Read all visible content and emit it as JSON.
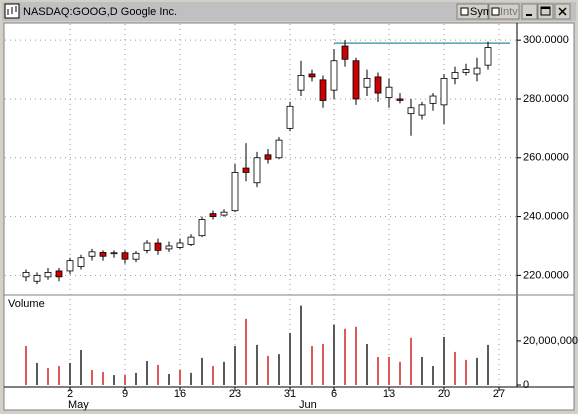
{
  "window": {
    "title": "NASDAQ:GOOG,D Google Inc.",
    "sym": "Sym",
    "intv": "Intv"
  },
  "chart_data": [
    {
      "type": "candlestick",
      "categories": [
        null,
        null,
        null,
        null,
        "2",
        null,
        null,
        null,
        null,
        "9",
        null,
        null,
        null,
        null,
        "16",
        null,
        null,
        null,
        null,
        "23",
        null,
        null,
        null,
        null,
        "31",
        null,
        null,
        null,
        "6",
        null,
        null,
        null,
        null,
        "13",
        null,
        null,
        null,
        null,
        "20",
        null,
        null,
        null,
        null,
        "27"
      ],
      "months": [
        null,
        null,
        null,
        null,
        "May",
        null,
        null,
        null,
        null,
        null,
        null,
        null,
        null,
        null,
        null,
        null,
        null,
        null,
        null,
        null,
        null,
        null,
        null,
        null,
        null,
        "Jun",
        null,
        null,
        null,
        null,
        null,
        null,
        null,
        null,
        null,
        null,
        null,
        null,
        null,
        null,
        null,
        null,
        null,
        null
      ],
      "open": [
        219.5,
        218,
        219.5,
        221.5,
        221.5,
        223,
        226.5,
        227.8,
        227.5,
        227.7,
        225.5,
        228.5,
        231,
        229,
        229.5,
        230.5,
        233.5,
        241,
        240.5,
        242,
        256.5,
        251.5,
        261,
        260,
        270,
        283,
        288.5,
        286.5,
        283,
        298,
        293,
        284,
        287.5,
        280.5,
        280,
        275,
        274.5,
        278.5,
        278,
        287,
        289,
        288.5,
        291.5,
        null
      ],
      "high": [
        222,
        221,
        222.5,
        222.5,
        226,
        227,
        229,
        228.5,
        228.5,
        228.5,
        228.3,
        232,
        232.5,
        231.5,
        232.5,
        234,
        240,
        242,
        242.5,
        258,
        265,
        262,
        263,
        267,
        279,
        293,
        290,
        288,
        297,
        300,
        294,
        290,
        289,
        287,
        282,
        280,
        279,
        282,
        288.5,
        291,
        292,
        294,
        299.5,
        null
      ],
      "low": [
        218,
        217,
        218.5,
        218,
        220.5,
        222,
        225,
        225,
        226,
        224,
        224.5,
        227.5,
        227,
        228,
        229,
        230,
        233,
        239,
        240,
        241.5,
        252,
        250,
        258,
        259.5,
        269,
        281,
        286,
        277,
        280,
        291,
        278,
        281,
        279,
        277,
        278.5,
        267.5,
        273,
        276,
        271.5,
        285,
        288,
        286,
        290,
        null
      ],
      "close": [
        221,
        220,
        221,
        219.5,
        225,
        226,
        228,
        226.5,
        227.7,
        225.5,
        227.5,
        231,
        228.5,
        230,
        231,
        233,
        239,
        240,
        241.5,
        255,
        255,
        260,
        259.5,
        266,
        277.5,
        288,
        287.5,
        279.5,
        293,
        293.5,
        280,
        287,
        282,
        284,
        279.5,
        277,
        278,
        281,
        287,
        289,
        290,
        290.5,
        297.5,
        null
      ],
      "up_color": "#ffffff",
      "down_color": "#cc0000",
      "annotation_line": {
        "value": 299,
        "color": "#2b8c99"
      },
      "ylim": [
        214,
        305.5
      ],
      "yticks": [
        {
          "value": 220,
          "label": "220.0000"
        },
        {
          "value": 240,
          "label": "240.0000"
        },
        {
          "value": 260,
          "label": "260.0000"
        },
        {
          "value": 280,
          "label": "280.0000"
        },
        {
          "value": 300,
          "label": "300.0000"
        }
      ],
      "grid": true
    },
    {
      "type": "bar",
      "title": "Volume",
      "values": [
        17700000,
        10000000,
        7700000,
        8600000,
        10000000,
        15900000,
        6800000,
        5900000,
        4500000,
        4500000,
        5500000,
        10900000,
        9100000,
        5000000,
        6800000,
        5500000,
        12300000,
        8600000,
        10500000,
        17700000,
        30000000,
        18200000,
        13200000,
        14000000,
        23600000,
        36000000,
        17700000,
        18600000,
        27300000,
        25500000,
        26400000,
        18600000,
        12700000,
        12700000,
        10500000,
        21400000,
        12700000,
        8600000,
        21800000,
        15000000,
        11400000,
        12300000,
        18200000,
        null
      ],
      "colors": [
        "#cc0000",
        "#000000",
        "#cc0000",
        "#cc0000",
        "#000000",
        "#000000",
        "#cc0000",
        "#cc0000",
        "#000000",
        "#cc0000",
        "#000000",
        "#000000",
        "#cc0000",
        "#000000",
        "#cc0000",
        "#000000",
        "#000000",
        "#cc0000",
        "#000000",
        "#000000",
        "#cc0000",
        "#000000",
        "#cc0000",
        "#000000",
        "#000000",
        "#000000",
        "#cc0000",
        "#cc0000",
        "#000000",
        "#cc0000",
        "#cc0000",
        "#000000",
        "#cc0000",
        "#cc0000",
        "#cc0000",
        "#cc0000",
        "#000000",
        "#000000",
        "#000000",
        "#cc0000",
        "#cc0000",
        "#000000",
        "#000000",
        null
      ],
      "ylim": [
        0,
        39000000
      ],
      "yticks": [
        0,
        {
          "value": 20000000,
          "label": "20,000,000"
        }
      ]
    }
  ]
}
